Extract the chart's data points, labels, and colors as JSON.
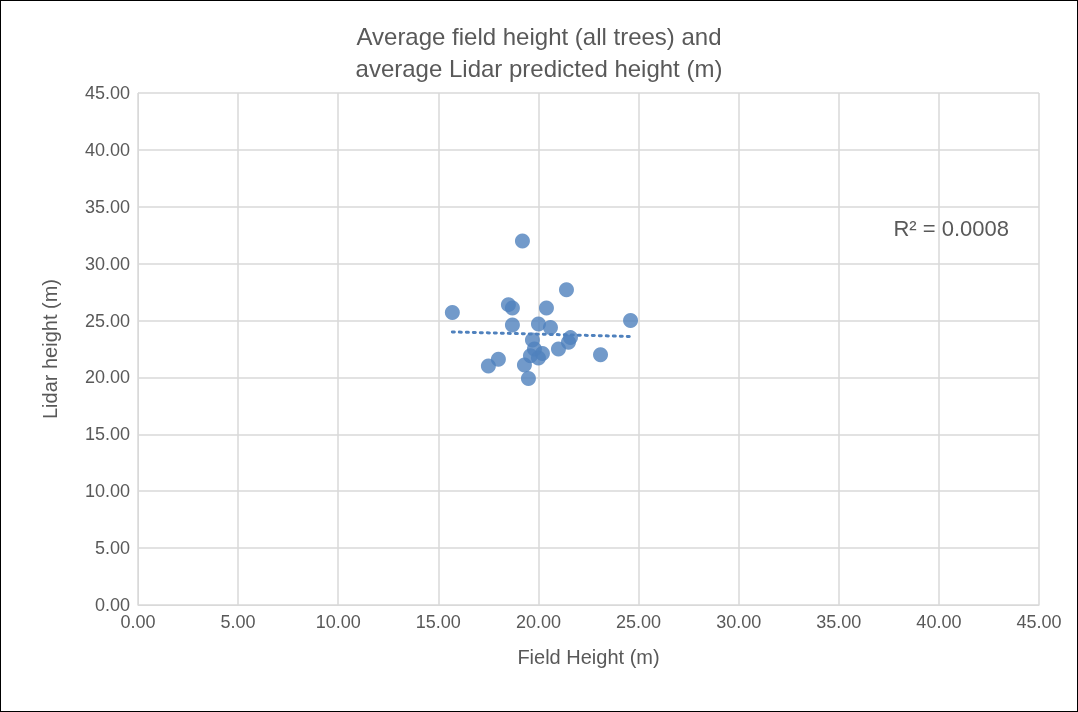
{
  "chart_data": {
    "type": "scatter",
    "title": "Average field height (all trees) and\naverage Lidar predicted height (m)",
    "xlabel": "Field Height (m)",
    "ylabel": "Lidar height (m)",
    "annotations": [
      "R² = 0.0008"
    ],
    "series": [
      {
        "color": "#4f81bd",
        "marker": "circle",
        "x": [
          15.7,
          18.5,
          18.7,
          18.7,
          19.2,
          21.4,
          20.4,
          20.0,
          20.6,
          24.6,
          23.1,
          21.6,
          21.5,
          21.0,
          20.2,
          19.7,
          19.8,
          19.6,
          20.0,
          19.3,
          19.5,
          18.0,
          17.5
        ],
        "values": [
          25.7,
          26.4,
          26.1,
          24.6,
          32.0,
          27.7,
          26.1,
          24.7,
          24.4,
          25.0,
          22.0,
          23.5,
          23.1,
          22.5,
          22.1,
          23.3,
          22.5,
          21.9,
          21.7,
          21.1,
          19.9,
          21.6,
          21.0
        ]
      },
      {
        "type": "line",
        "color": "#4f81bd",
        "line_style": "dotted",
        "marker": "none",
        "x": [
          15.7,
          24.6
        ],
        "values": [
          24.0,
          23.6
        ]
      }
    ],
    "xlim": [
      0,
      45
    ],
    "xticks": [
      {
        "value": 0,
        "label": "0.00"
      },
      {
        "value": 5,
        "label": "5.00"
      },
      {
        "value": 10,
        "label": "10.00"
      },
      {
        "value": 15,
        "label": "15.00"
      },
      {
        "value": 20,
        "label": "20.00"
      },
      {
        "value": 25,
        "label": "25.00"
      },
      {
        "value": 30,
        "label": "30.00"
      },
      {
        "value": 35,
        "label": "35.00"
      },
      {
        "value": 40,
        "label": "40.00"
      },
      {
        "value": 45,
        "label": "45.00"
      }
    ],
    "ylim": [
      0,
      45
    ],
    "yticks": [
      {
        "value": 0,
        "label": "0.00"
      },
      {
        "value": 5,
        "label": "5.00"
      },
      {
        "value": 10,
        "label": "10.00"
      },
      {
        "value": 15,
        "label": "15.00"
      },
      {
        "value": 20,
        "label": "20.00"
      },
      {
        "value": 25,
        "label": "25.00"
      },
      {
        "value": 30,
        "label": "30.00"
      },
      {
        "value": 35,
        "label": "35.00"
      },
      {
        "value": 40,
        "label": "40.00"
      },
      {
        "value": 45,
        "label": "45.00"
      }
    ],
    "grid": true
  }
}
